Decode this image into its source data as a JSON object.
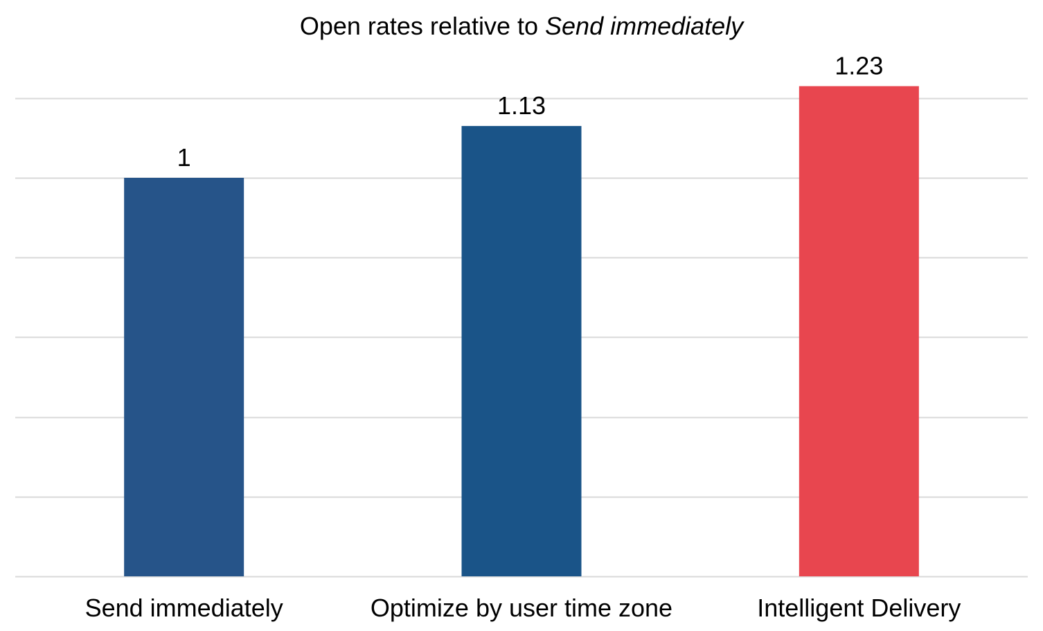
{
  "chart_data": {
    "type": "bar",
    "title": {
      "prefix": "Open rates relative to ",
      "emphasis": "Send immediately"
    },
    "categories": [
      "Send immediately",
      "Optimize by user time zone",
      "Intelligent Delivery"
    ],
    "values": [
      1,
      1.13,
      1.23
    ],
    "data_labels": [
      "1",
      "1.13",
      "1.23"
    ],
    "colors": [
      "#265489",
      "#1a5488",
      "#e8464f"
    ],
    "ylim": [
      0,
      1.2
    ],
    "gridlines": [
      0,
      0.2,
      0.4,
      0.6,
      0.8,
      1.0,
      1.2
    ],
    "grid": true,
    "legend": "none",
    "grid_color": "#d9d9d9"
  }
}
